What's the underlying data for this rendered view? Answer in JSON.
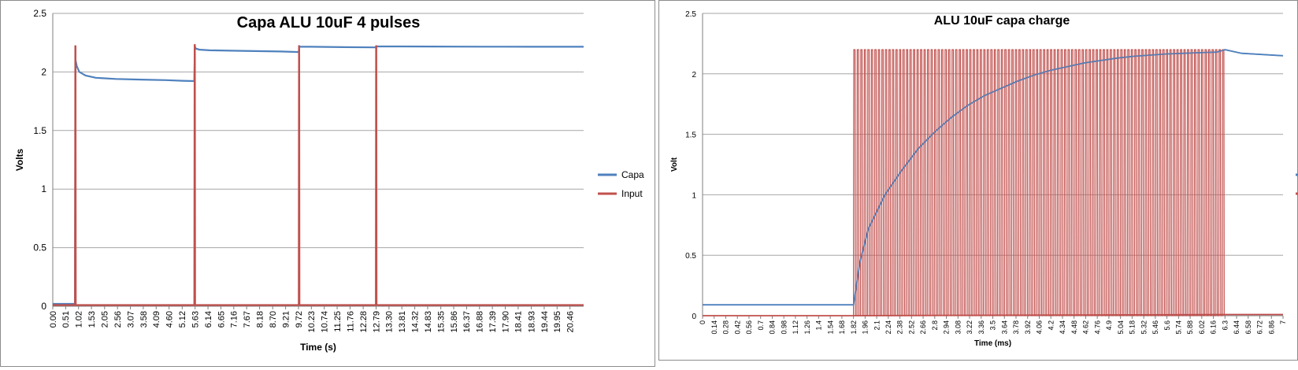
{
  "chart_data": [
    {
      "type": "line",
      "title": "Capa ALU 10uF 4 pulses",
      "xlabel": "Time (s)",
      "ylabel": "Volts",
      "ylim": [
        0,
        2.5
      ],
      "yticks": [
        "0",
        "0.5",
        "1",
        "1.5",
        "2",
        "2.5"
      ],
      "xlim": [
        0,
        21.0
      ],
      "xticks": [
        "0.00",
        "0.51",
        "1.02",
        "1.53",
        "2.05",
        "2.56",
        "3.07",
        "3.58",
        "4.09",
        "4.60",
        "5.12",
        "5.63",
        "6.14",
        "6.65",
        "7.16",
        "7.67",
        "8.18",
        "8.70",
        "9.21",
        "9.72",
        "10.23",
        "10.74",
        "11.25",
        "11.76",
        "12.28",
        "12.79",
        "13.30",
        "13.81",
        "14.32",
        "14.83",
        "15.35",
        "15.86",
        "16.37",
        "16.88",
        "17.39",
        "17.90",
        "18.41",
        "18.93",
        "19.44",
        "19.95",
        "20.46"
      ],
      "grid": "horizontal",
      "legend": "right",
      "series": [
        {
          "name": "Capa",
          "color": "#4f81bd",
          "x": [
            0,
            0.88,
            0.9,
            0.95,
            1.05,
            1.3,
            1.7,
            2.5,
            3.5,
            4.5,
            5.12,
            5.6,
            5.62,
            5.65,
            5.8,
            6.2,
            7.5,
            9.0,
            9.73,
            9.75,
            9.8,
            10.2,
            11.5,
            12.78,
            12.8,
            12.85,
            13.5,
            15.0,
            17.0,
            19.0,
            21.0
          ],
          "y": [
            0.02,
            0.02,
            2.1,
            2.05,
            2.0,
            1.97,
            1.95,
            1.94,
            1.935,
            1.93,
            1.925,
            1.922,
            2.22,
            2.2,
            2.19,
            2.185,
            2.18,
            2.175,
            2.17,
            2.22,
            2.215,
            2.215,
            2.212,
            2.21,
            2.22,
            2.218,
            2.218,
            2.217,
            2.216,
            2.215,
            2.215
          ]
        },
        {
          "name": "Input",
          "color": "#c0504d",
          "x": [
            0,
            0.88,
            0.89,
            0.9,
            0.91,
            5.6,
            5.61,
            5.62,
            5.63,
            9.73,
            9.74,
            9.75,
            9.76,
            12.78,
            12.79,
            12.8,
            12.81,
            21.0
          ],
          "y": [
            0.01,
            0.01,
            2.22,
            2.22,
            0.01,
            0.01,
            2.23,
            2.23,
            0.01,
            0.01,
            2.22,
            2.22,
            0.01,
            0.01,
            2.22,
            2.22,
            0.01,
            0.01
          ]
        }
      ]
    },
    {
      "type": "line",
      "title": "ALU 10uF capa charge",
      "xlabel": "Time (ms)",
      "ylabel": "Volt",
      "ylim": [
        0,
        2.5
      ],
      "yticks": [
        "0",
        "0.5",
        "1",
        "1.5",
        "2",
        "2.5"
      ],
      "xlim": [
        0,
        7.0
      ],
      "xticks": [
        "0",
        "0.14",
        "0.28",
        "0.42",
        "0.56",
        "0.7",
        "0.84",
        "0.98",
        "1.12",
        "1.26",
        "1.4",
        "1.54",
        "1.68",
        "1.82",
        "1.96",
        "2.1",
        "2.24",
        "2.38",
        "2.52",
        "2.66",
        "2.8",
        "2.94",
        "3.08",
        "3.22",
        "3.36",
        "3.5",
        "3.64",
        "3.78",
        "3.92",
        "4.06",
        "4.2",
        "4.34",
        "4.48",
        "4.62",
        "4.76",
        "4.9",
        "5.04",
        "5.18",
        "5.32",
        "5.46",
        "5.6",
        "5.74",
        "5.88",
        "6.02",
        "6.16",
        "6.3",
        "6.44",
        "6.58",
        "6.72",
        "6.86",
        "7"
      ],
      "grid": "horizontal",
      "legend": "right",
      "pulse_train": {
        "start": 1.82,
        "end": 6.31,
        "count": 106,
        "high": 2.2,
        "low": 0.0
      },
      "series": [
        {
          "name": "",
          "color": "#4f81bd",
          "x": [
            0,
            1.82,
            1.9,
            2.0,
            2.2,
            2.4,
            2.6,
            2.8,
            3.0,
            3.2,
            3.4,
            3.6,
            3.8,
            4.0,
            4.2,
            4.4,
            4.6,
            4.8,
            5.0,
            5.2,
            5.4,
            5.6,
            5.8,
            6.0,
            6.2,
            6.3,
            6.5,
            7.0
          ],
          "y": [
            0.09,
            0.09,
            0.45,
            0.72,
            1.0,
            1.2,
            1.38,
            1.52,
            1.64,
            1.74,
            1.82,
            1.88,
            1.94,
            1.99,
            2.03,
            2.06,
            2.09,
            2.11,
            2.13,
            2.145,
            2.155,
            2.165,
            2.17,
            2.175,
            2.18,
            2.2,
            2.17,
            2.15
          ]
        },
        {
          "name": "",
          "color": "#c0504d",
          "x": [
            0,
            1.82,
            6.31,
            7.0
          ],
          "y": [
            0.0,
            0.0,
            0.01,
            0.01
          ]
        }
      ]
    }
  ]
}
